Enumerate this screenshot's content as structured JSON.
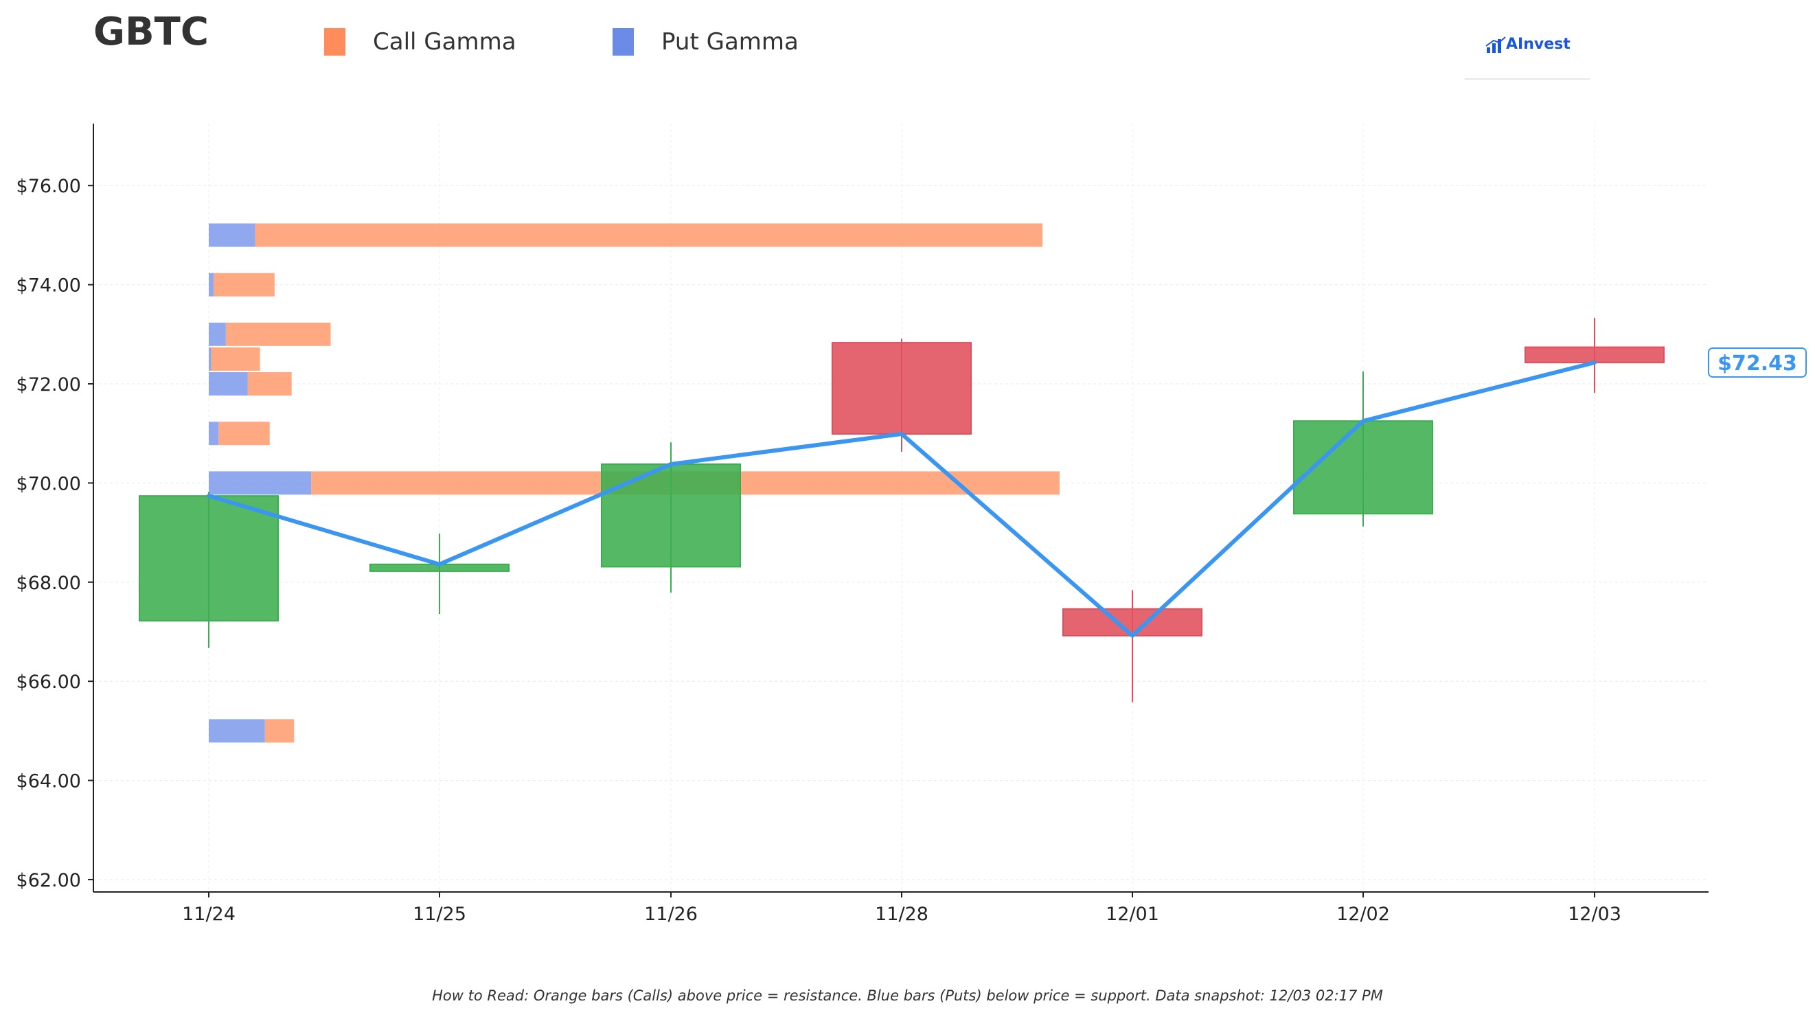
{
  "title": "GBTC",
  "legend": [
    {
      "label": "Call Gamma",
      "color": "#ff8c5a"
    },
    {
      "label": "Put Gamma",
      "color": "#6b8be8"
    }
  ],
  "logo": {
    "text": "AInvest",
    "icon": "chart-bars-icon"
  },
  "footnote": "How to Read: Orange bars (Calls) above price = resistance. Blue bars (Puts) below price = support. Data snapshot: 12/03 02:17 PM",
  "chart_data": {
    "type": "candlestick",
    "categories": [
      "11/24",
      "11/25",
      "11/26",
      "11/28",
      "12/01",
      "12/02",
      "12/03"
    ],
    "ylim": [
      61.75,
      77.25
    ],
    "yticks": [
      62,
      64,
      66,
      68,
      70,
      72,
      74,
      76
    ],
    "ytick_labels": [
      "$62.00",
      "$64.00",
      "$66.00",
      "$68.00",
      "$70.00",
      "$72.00",
      "$74.00",
      "$76.00"
    ],
    "grid": true,
    "legend_position": "top",
    "colors": {
      "up": "#3cae50",
      "down": "#e0505c",
      "close_line": "#3a96f0",
      "call": "#ff8c5a",
      "put": "#6b8be8"
    },
    "candles": [
      {
        "date": "11/24",
        "open": 67.22,
        "close": 69.74,
        "high": 69.82,
        "low": 66.67
      },
      {
        "date": "11/25",
        "open": 68.22,
        "close": 68.36,
        "high": 68.98,
        "low": 67.36
      },
      {
        "date": "11/26",
        "open": 68.31,
        "close": 70.38,
        "high": 70.82,
        "low": 67.79
      },
      {
        "date": "11/28",
        "open": 72.83,
        "close": 70.99,
        "high": 72.91,
        "low": 70.63
      },
      {
        "date": "12/01",
        "open": 67.46,
        "close": 66.92,
        "high": 67.84,
        "low": 65.58
      },
      {
        "date": "12/02",
        "open": 69.38,
        "close": 71.25,
        "high": 72.25,
        "low": 69.12
      },
      {
        "date": "12/03",
        "open": 72.74,
        "close": 72.43,
        "high": 73.33,
        "low": 71.82
      }
    ],
    "close_line": [
      69.74,
      68.36,
      70.38,
      70.99,
      66.92,
      71.25,
      72.43
    ],
    "last_price_label": "$72.43",
    "gamma_bars": [
      {
        "strike": 75,
        "put": 0.19,
        "call": 3.23
      },
      {
        "strike": 74,
        "put": 0.02,
        "call": 0.25
      },
      {
        "strike": 73,
        "put": 0.07,
        "call": 0.43
      },
      {
        "strike": 72.5,
        "put": 0.01,
        "call": 0.2
      },
      {
        "strike": 72,
        "put": 0.16,
        "call": 0.18
      },
      {
        "strike": 71,
        "put": 0.04,
        "call": 0.21
      },
      {
        "strike": 70,
        "put": 0.42,
        "call": 3.07
      },
      {
        "strike": 65,
        "put": 0.23,
        "call": 0.12
      }
    ]
  }
}
